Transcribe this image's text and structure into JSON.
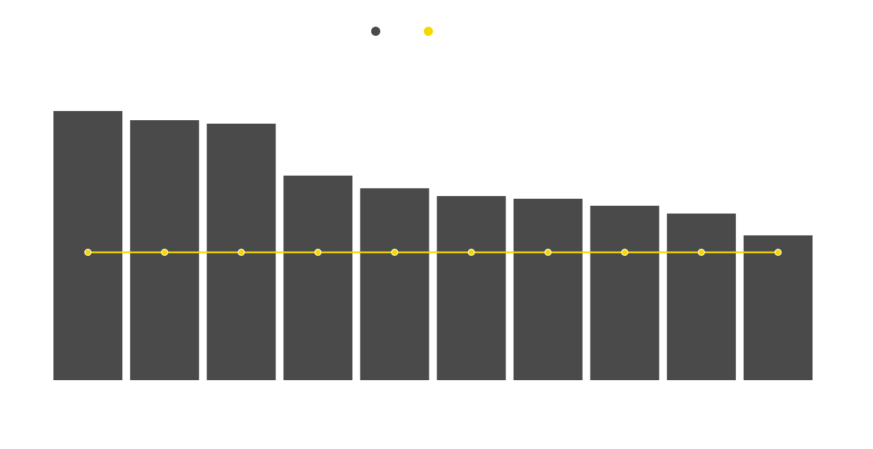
{
  "chart_data": {
    "type": "bar",
    "categories": [
      "",
      "",
      "",
      "",
      "",
      "",
      "",
      "",
      "",
      ""
    ],
    "series": [
      {
        "kind": "bar",
        "color": "#4a4a4a",
        "values": [
          100,
          96.6,
          95.3,
          76,
          71.3,
          68.4,
          67.4,
          64.8,
          61.9,
          53.8
        ]
      },
      {
        "kind": "line",
        "color": "#f5d800",
        "values": [
          47.5,
          47.5,
          47.5,
          47.5,
          47.5,
          47.5,
          47.5,
          47.5,
          47.5,
          47.5
        ]
      }
    ],
    "title": "",
    "xlabel": "",
    "ylabel": "",
    "ylim": [
      0,
      100
    ],
    "grid": false,
    "legend": "top-center"
  }
}
